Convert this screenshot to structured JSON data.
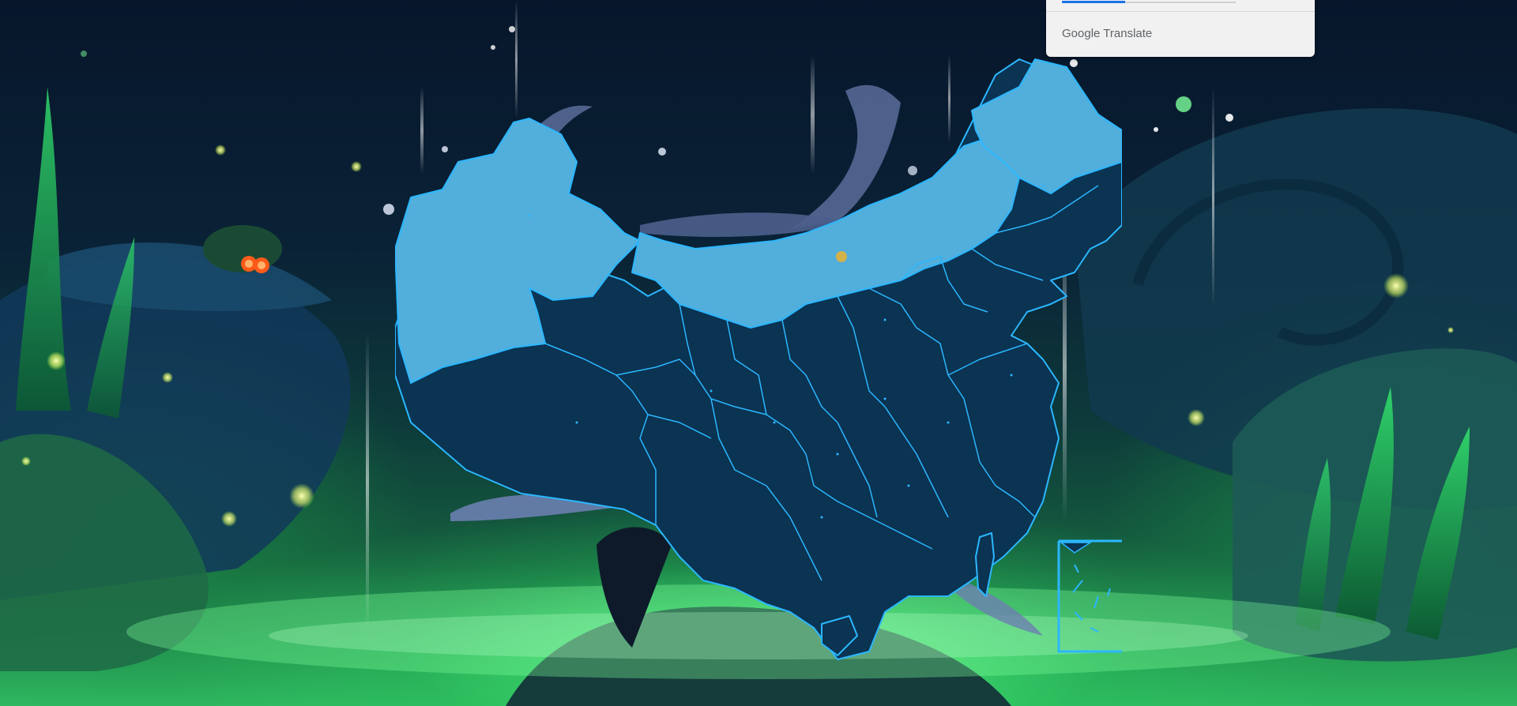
{
  "widget": {
    "brand_google": "Google",
    "brand_product": "Translate",
    "accent_color": "#1a73e8"
  },
  "map": {
    "highlight_color": "#52aedb",
    "base_color": "#0b3352",
    "border_color": "#2bb7ff",
    "marker_color": "#d4b24a",
    "highlighted_regions": [
      "xinjiang-region",
      "inner-mongolia-region",
      "heilongjiang-region"
    ],
    "has_south-china-sea-inset": true
  },
  "icons": [
    "pet-with-goggles-icon",
    "firefly-particle-icon",
    "light-ray-icon"
  ]
}
